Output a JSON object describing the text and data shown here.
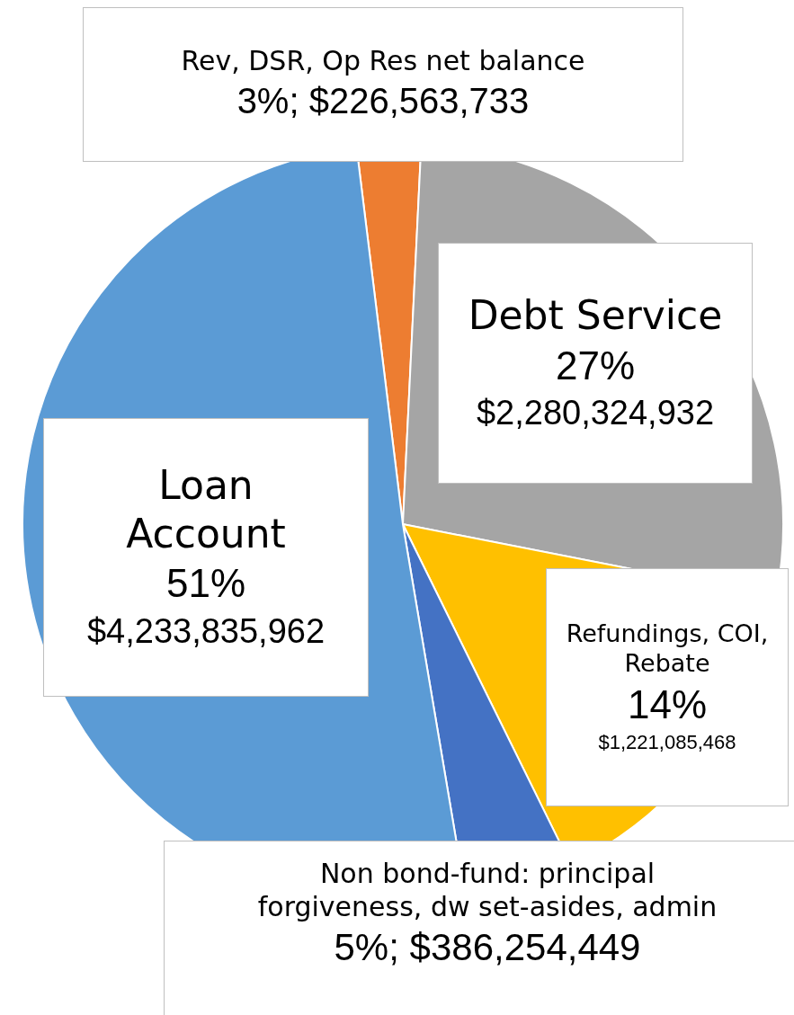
{
  "chart_data": {
    "type": "pie",
    "categories": [
      "Rev, DSR, Op Res net balance",
      "Debt Service",
      "Refundings, COI, Rebate",
      "Non bond-fund: principal forgiveness, dw set-asides, admin",
      "Loan Account"
    ],
    "values": [
      226563733,
      2280324932,
      1221085468,
      386254449,
      4233835962
    ],
    "colors": [
      "#ed7d31",
      "#a5a5a5",
      "#ffc000",
      "#4472c4",
      "#5b9bd5"
    ],
    "value_labels": [
      "3%; $226,563,733",
      "27%\n$2,280,324,932",
      "14%\n$1,221,085,468",
      "5%; $386,254,449",
      "51%\n$4,233,835,962"
    ]
  }
}
